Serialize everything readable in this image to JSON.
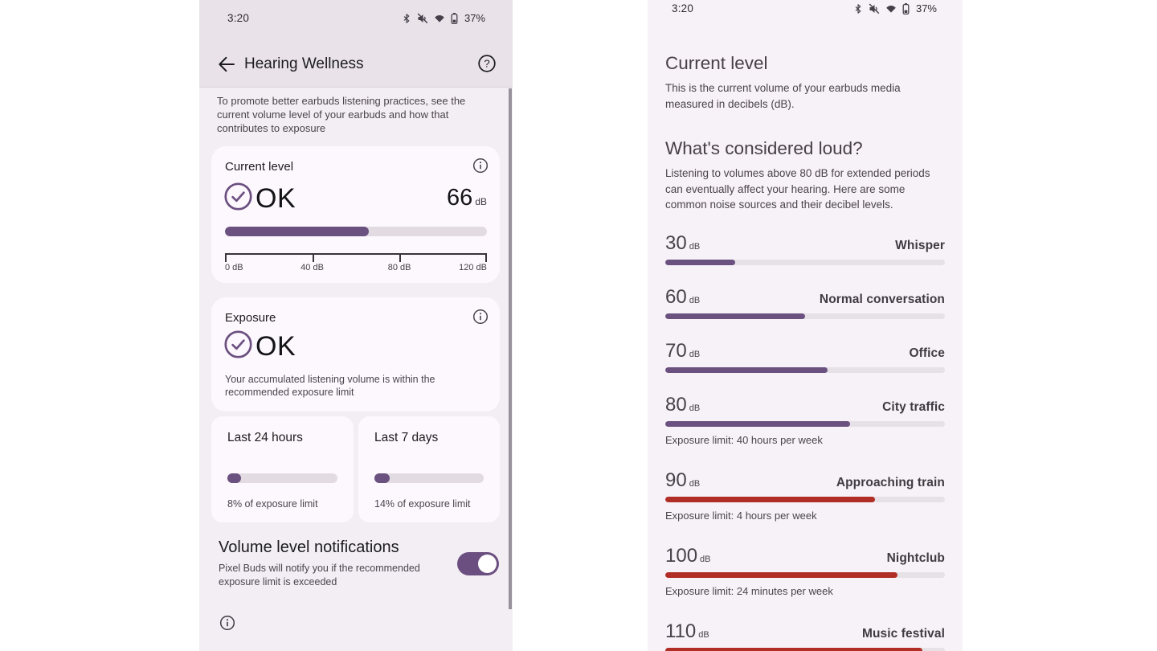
{
  "colors": {
    "accent": "#6b5180",
    "accent_dark": "#6b4f80",
    "warning_red": "#b02e25"
  },
  "left_screen": {
    "status_bar": {
      "time": "3:20",
      "battery": "37%"
    },
    "header": {
      "title": "Hearing Wellness"
    },
    "intro": "To promote better earbuds listening practices, see the current volume level of your earbuds and how that contributes to exposure",
    "current_level_card": {
      "title": "Current level",
      "status": "OK",
      "value": "66",
      "unit": "dB",
      "progress_pct": 55,
      "scale_labels": [
        "0 dB",
        "40 dB",
        "80 dB",
        "120 dB"
      ]
    },
    "exposure_card": {
      "title": "Exposure",
      "status": "OK",
      "description": "Your accumulated listening volume is within the recommended exposure limit"
    },
    "history_cards": [
      {
        "title": "Last 24 hours",
        "caption": "8% of exposure limit",
        "pct": 8
      },
      {
        "title": "Last 7 days",
        "caption": "14% of exposure limit",
        "pct": 14
      }
    ],
    "notifications": {
      "title": "Volume level notifications",
      "description": "Pixel Buds will notify you if the recommended exposure limit is exceeded",
      "enabled": true
    }
  },
  "right_screen": {
    "status_bar": {
      "time": "3:20",
      "battery": "37%"
    },
    "sections": [
      {
        "title": "Current level",
        "body": "This is the current volume of your earbuds media measured in decibels (dB)."
      },
      {
        "title": "What's considered loud?",
        "body": "Listening to volumes above 80 dB for extended periods can eventually affect your hearing. Here are some common noise sources and their decibel levels."
      }
    ],
    "noise_levels": [
      {
        "db": "30",
        "unit": "dB",
        "label": "Whisper",
        "pct": 25,
        "color": "#6b5180",
        "limit": ""
      },
      {
        "db": "60",
        "unit": "dB",
        "label": "Normal conversation",
        "pct": 50,
        "color": "#6b5180",
        "limit": ""
      },
      {
        "db": "70",
        "unit": "dB",
        "label": "Office",
        "pct": 58,
        "color": "#6b5180",
        "limit": ""
      },
      {
        "db": "80",
        "unit": "dB",
        "label": "City traffic",
        "pct": 66,
        "color": "#6b5180",
        "limit": "Exposure limit: 40 hours per week"
      },
      {
        "db": "90",
        "unit": "dB",
        "label": "Approaching train",
        "pct": 75,
        "color": "#b02e25",
        "limit": "Exposure limit: 4 hours per week"
      },
      {
        "db": "100",
        "unit": "dB",
        "label": "Nightclub",
        "pct": 83,
        "color": "#b02e25",
        "limit": "Exposure limit: 24 minutes per week"
      },
      {
        "db": "110",
        "unit": "dB",
        "label": "Music festival",
        "pct": 92,
        "color": "#b02e25",
        "limit": ""
      }
    ]
  }
}
